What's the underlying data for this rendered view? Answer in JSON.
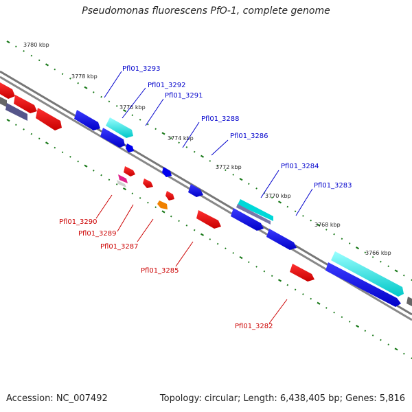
{
  "title": "Pseudomonas fluorescens PfO-1, complete genome",
  "footer": {
    "accession": "Accession: NC_007492",
    "summary": "Topology: circular; Length: 6,438,405 bp; Genes: 5,816"
  },
  "kbp_ticks": [
    "3780 kbp",
    "3778 kbp",
    "3776 kbp",
    "3774 kbp",
    "3772 kbp",
    "3770 kbp",
    "3768 kbp",
    "3766 kbp"
  ],
  "forward_labels": [
    "Pfl01_3293",
    "Pfl01_3292",
    "Pfl01_3291",
    "Pfl01_3288",
    "Pfl01_3286",
    "Pfl01_3284",
    "Pfl01_3283"
  ],
  "reverse_labels": [
    "Pfl01_3290",
    "Pfl01_3289",
    "Pfl01_3287",
    "Pfl01_3285",
    "Pfl01_3282"
  ],
  "colors": {
    "forward_cds": "#0000ee",
    "reverse_cds": "#ee0000",
    "rna": "#00d8d8",
    "backbone": "#888888",
    "tick": "#1a7a1a",
    "forward_label": "#0000cc",
    "reverse_label": "#cc0000"
  }
}
